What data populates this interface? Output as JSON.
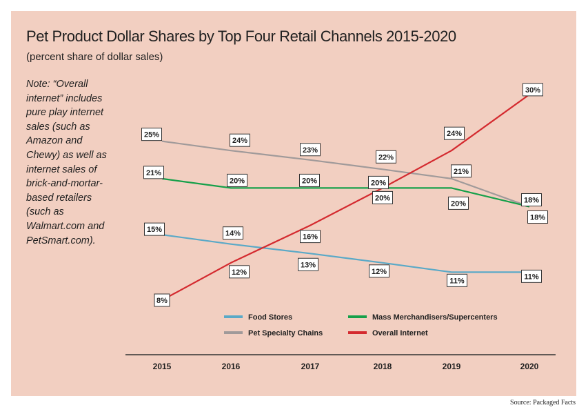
{
  "chart_data": {
    "type": "line",
    "title": "Pet Product Dollar Shares by Top Four Retail Channels 2015-2020",
    "subtitle": "(percent share of dollar sales)",
    "note": "Note: “Overall internet” includes pure play internet sales (such as Amazon and Chewy) as well as internet sales of brick-and-mortar-based retailers (such as Walmart.com and PetSmart.com).",
    "source": "Source: Packaged Facts",
    "x": [
      "2015",
      "2016",
      "2017",
      "2018",
      "2019",
      "2020"
    ],
    "ylim": [
      0,
      35
    ],
    "series": [
      {
        "name": "Food Stores",
        "color": "#5aa9c7",
        "values": [
          15,
          14,
          13,
          12,
          11,
          11
        ],
        "labels": [
          "15%",
          "14%",
          "13%",
          "12%",
          "11%",
          "11%"
        ]
      },
      {
        "name": "Mass Merchandisers/Supercenters",
        "color": "#16a04a",
        "values": [
          21,
          20,
          20,
          20,
          20,
          18
        ],
        "labels": [
          "21%",
          "20%",
          "20%",
          "20%",
          "20%",
          "18%"
        ]
      },
      {
        "name": "Pet Specialty Chains",
        "color": "#a09a9a",
        "values": [
          25,
          24,
          23,
          22,
          21,
          18
        ],
        "labels": [
          "25%",
          "24%",
          "23%",
          "22%",
          "21%",
          "18%"
        ]
      },
      {
        "name": "Overall Internet",
        "color": "#d42a2f",
        "values": [
          8,
          12,
          16,
          20,
          24,
          30
        ],
        "labels": [
          "8%",
          "12%",
          "16%",
          "20%",
          "24%",
          "30%"
        ]
      }
    ],
    "legend_order": [
      "Food Stores",
      "Mass Merchandisers/Supercenters",
      "Pet Specialty Chains",
      "Overall Internet"
    ],
    "legend_position": "bottom-center",
    "grid": false
  }
}
